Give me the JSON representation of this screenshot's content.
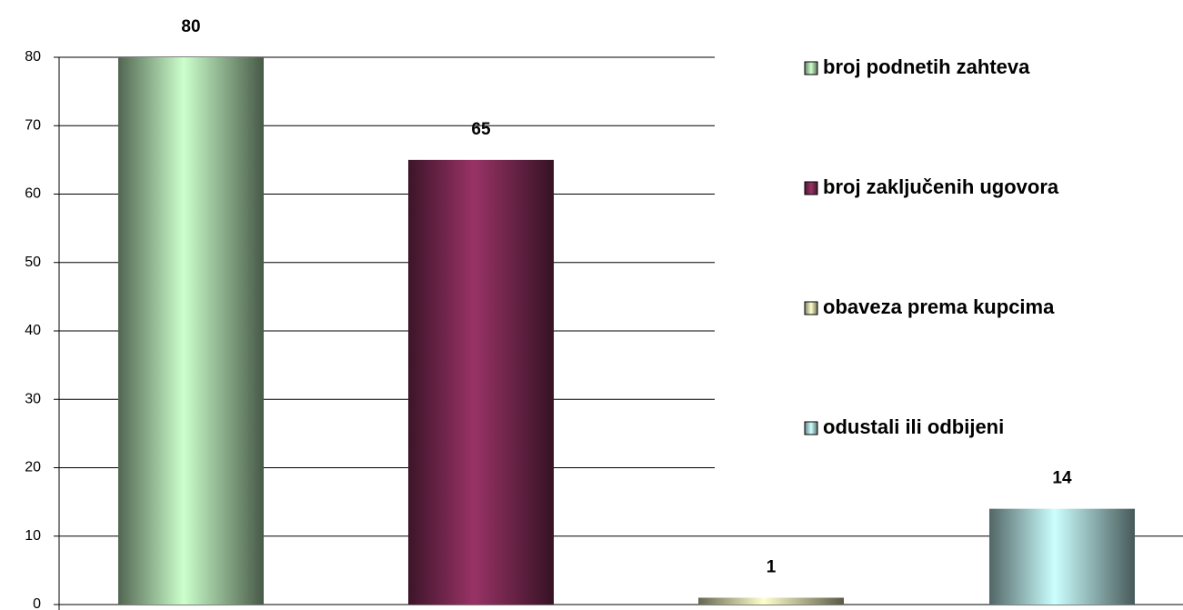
{
  "chart_data": {
    "type": "bar",
    "series": [
      {
        "name": "broj podnetih zahteva",
        "color": "#ccffcc",
        "values": [
          80
        ]
      },
      {
        "name": "broj zaključenih ugovora",
        "color": "#993366",
        "values": [
          65
        ]
      },
      {
        "name": "obaveza prema kupcima",
        "color": "#ffffcc",
        "values": [
          1
        ]
      },
      {
        "name": "odustali ili odbijeni",
        "color": "#ccffff",
        "values": [
          14
        ]
      }
    ],
    "ylim": [
      0,
      80
    ],
    "yticks": [
      0,
      10,
      20,
      30,
      40,
      50,
      60,
      70,
      80
    ],
    "grid": true,
    "legend": "right"
  }
}
